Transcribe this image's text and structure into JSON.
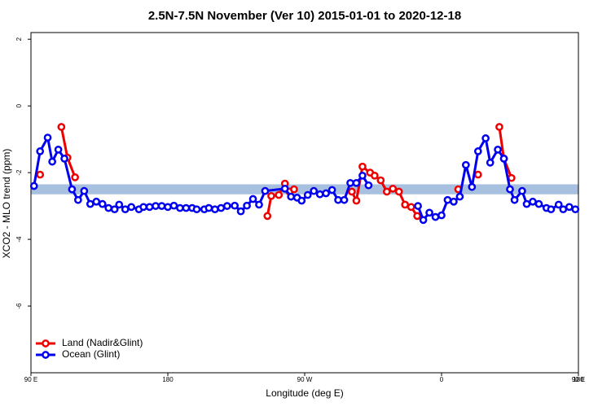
{
  "chart_data": {
    "type": "line",
    "title": "2.5N-7.5N November (Ver 10)   2015-01-01 to 2020-12-18",
    "x_label": "Longitude (deg E)",
    "y_label": "XCO2 - MLO trend (ppm)",
    "xlim": [
      90,
      450
    ],
    "ylim": [
      -8,
      2.2
    ],
    "xticks": [
      {
        "value": 90,
        "label": "90 E"
      },
      180,
      {
        "value": 270,
        "label": "90 W"
      },
      {
        "value": 360,
        "label": "0"
      },
      {
        "value": 450,
        "label": "90 E"
      },
      {
        "value": 540,
        "label": "180"
      }
    ],
    "yticks": [
      2,
      0,
      -2,
      -4,
      -6
    ],
    "band": {
      "ymin": -2.65,
      "ymax": -2.35,
      "color": "#a8c0e0"
    },
    "legend": "bottom-left",
    "series": [
      {
        "name": "Land (Nadir&Glint)",
        "color": "#ee0000",
        "x": [
          96,
          null,
          110,
          114,
          119,
          null,
          245.5,
          248,
          253,
          257,
          260,
          263,
          null,
          301,
          304,
          308,
          313,
          316,
          320,
          324,
          328,
          332,
          336,
          340,
          344,
          null,
          371,
          null,
          384,
          null,
          398,
          401,
          406
        ],
        "values": [
          -2.06,
          null,
          -0.63,
          -1.55,
          -2.14,
          null,
          -3.3,
          -2.7,
          -2.67,
          -2.33,
          -2.57,
          -2.5,
          null,
          -2.57,
          -2.84,
          -1.82,
          -2.0,
          -2.09,
          -2.23,
          -2.57,
          -2.48,
          -2.57,
          -2.96,
          -3.03,
          -3.3,
          null,
          -2.5,
          null,
          -2.06,
          null,
          -0.63,
          -1.58,
          -2.16
        ]
      },
      {
        "name": "Ocean (Glint)",
        "color": "#0000ee",
        "x": [
          92,
          96,
          101,
          104,
          108,
          112,
          117,
          121,
          125,
          129,
          133,
          137,
          141,
          145,
          148,
          152,
          156,
          161,
          164,
          168,
          172,
          176,
          180,
          184,
          188,
          192,
          196,
          199,
          204,
          207,
          211,
          215,
          219,
          224,
          228,
          232,
          236,
          240,
          244,
          257,
          261,
          265,
          268,
          272,
          276,
          280,
          284,
          288,
          292,
          296,
          300,
          304,
          308,
          312,
          null,
          344.5,
          348,
          352,
          356,
          360,
          364,
          368,
          372,
          376,
          380,
          384,
          389,
          392,
          397,
          401,
          405,
          408,
          413,
          416,
          420,
          424,
          429,
          432,
          437,
          440,
          444,
          448
        ],
        "values": [
          -2.4,
          -1.36,
          -0.95,
          -1.67,
          -1.31,
          -1.58,
          -2.5,
          -2.82,
          -2.55,
          -2.94,
          -2.87,
          -2.94,
          -3.06,
          -3.1,
          -2.96,
          -3.1,
          -3.03,
          -3.1,
          -3.03,
          -3.03,
          -3.0,
          -3.0,
          -3.03,
          -2.99,
          -3.06,
          -3.06,
          -3.06,
          -3.1,
          -3.1,
          -3.06,
          -3.1,
          -3.06,
          -3.0,
          -2.99,
          -3.16,
          -2.99,
          -2.79,
          -2.96,
          -2.55,
          -2.48,
          -2.72,
          -2.75,
          -2.84,
          -2.67,
          -2.55,
          -2.65,
          -2.62,
          -2.52,
          -2.82,
          -2.82,
          -2.31,
          -2.31,
          -2.09,
          -2.38,
          null,
          -3.0,
          -3.42,
          -3.2,
          -3.33,
          -3.28,
          -2.82,
          -2.87,
          -2.72,
          -1.77,
          -2.43,
          -1.36,
          -0.97,
          -1.7,
          -1.31,
          -1.58,
          -2.5,
          -2.82,
          -2.55,
          -2.94,
          -2.87,
          -2.94,
          -3.06,
          -3.1,
          -2.96,
          -3.1,
          -3.03,
          -3.1
        ]
      }
    ]
  }
}
